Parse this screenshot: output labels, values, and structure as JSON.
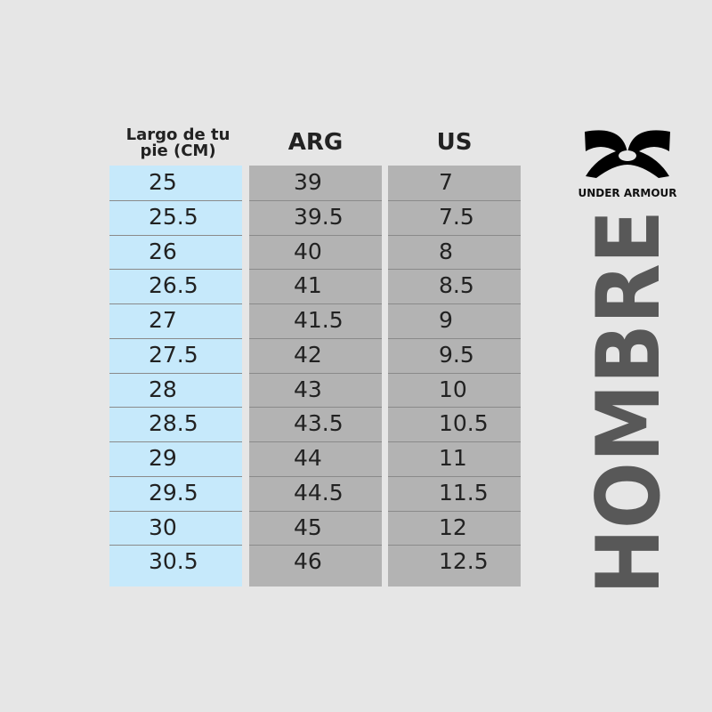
{
  "header": {
    "columns": [
      "Largo de tu pie (CM)",
      "ARG",
      "US"
    ]
  },
  "logo_text": "UNDER ARMOUR",
  "side_title": "HOMBRE",
  "table": {
    "rows": [
      [
        "25",
        "39",
        "7"
      ],
      [
        "25.5",
        "39.5",
        "7.5"
      ],
      [
        "26",
        "40",
        "8"
      ],
      [
        "26.5",
        "41",
        "8.5"
      ],
      [
        "27",
        "41.5",
        "9"
      ],
      [
        "27.5",
        "42",
        "9.5"
      ],
      [
        "28",
        "43",
        "10"
      ],
      [
        "28.5",
        "43.5",
        "10.5"
      ],
      [
        "29",
        "44",
        "11"
      ],
      [
        "29.5",
        "44.5",
        "11.5"
      ],
      [
        "30",
        "45",
        "12"
      ],
      [
        "30.5",
        "46",
        "12.5"
      ]
    ]
  }
}
